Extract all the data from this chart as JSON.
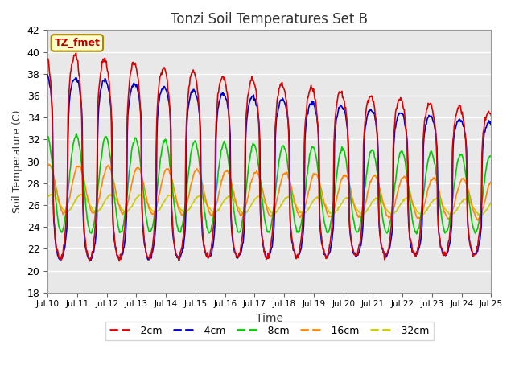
{
  "title": "Tonzi Soil Temperatures Set B",
  "xlabel": "Time",
  "ylabel": "Soil Temperature (C)",
  "ylim": [
    18,
    42
  ],
  "bg_color": "#e8e8e8",
  "fig_color": "#ffffff",
  "annotation_text": "TZ_fmet",
  "annotation_bg": "#ffffcc",
  "annotation_border": "#aa8800",
  "series_colors": [
    "#dd0000",
    "#0000cc",
    "#00cc00",
    "#ff8800",
    "#cccc00"
  ],
  "series_lw": [
    1.2,
    1.2,
    1.2,
    1.2,
    1.2
  ],
  "grid_color": "#ffffff",
  "legend_labels": [
    "-2cm",
    "-4cm",
    "-8cm",
    "-16cm",
    "-32cm"
  ],
  "legend_colors": [
    "#dd0000",
    "#0000cc",
    "#00cc00",
    "#ff8800",
    "#cccc00"
  ],
  "n_days": 15,
  "pts_per_day": 48
}
